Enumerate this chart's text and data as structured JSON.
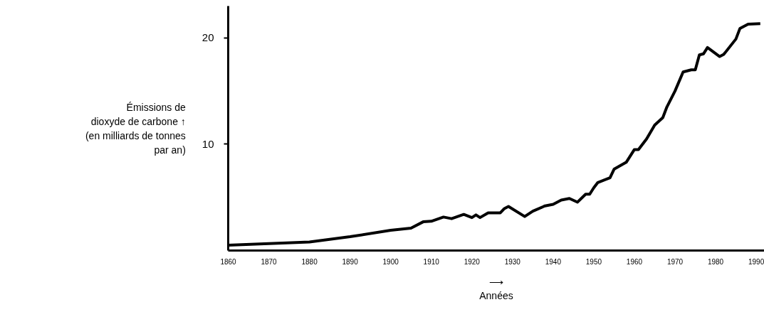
{
  "chart_data": {
    "type": "line",
    "xlabel": "⟶\nAnnées",
    "ylabel": "Émissions de\ndioxyde de carbone ↑\n(en milliards de tonnes\npar an)",
    "x": [
      1860,
      1880,
      1890,
      1900,
      1905,
      1908,
      1910,
      1913,
      1915,
      1918,
      1920,
      1921,
      1922,
      1924,
      1927,
      1928,
      1929,
      1933,
      1935,
      1938,
      1940,
      1942,
      1944,
      1946,
      1948,
      1949,
      1950,
      1951,
      1954,
      1955,
      1958,
      1960,
      1961,
      1963,
      1965,
      1967,
      1968,
      1970,
      1972,
      1974,
      1975,
      1976,
      1977,
      1978,
      1981,
      1982,
      1985,
      1986,
      1988,
      1991
    ],
    "series": [
      {
        "color": "#000000",
        "values": [
          0.5,
          0.8,
          1.3,
          1.9,
          2.1,
          2.7,
          2.75,
          3.15,
          3.0,
          3.4,
          3.1,
          3.35,
          3.1,
          3.55,
          3.55,
          3.95,
          4.15,
          3.2,
          3.7,
          4.2,
          4.35,
          4.75,
          4.9,
          4.55,
          5.3,
          5.3,
          5.9,
          6.4,
          6.85,
          7.65,
          8.3,
          9.5,
          9.5,
          10.5,
          11.8,
          12.5,
          13.5,
          15.0,
          16.8,
          17.0,
          17.0,
          18.4,
          18.5,
          19.1,
          18.25,
          18.45,
          19.9,
          20.9,
          21.3,
          21.35
        ]
      }
    ],
    "xlim": [
      1860,
      1992
    ],
    "ylim": [
      0,
      23
    ],
    "xticks": [
      1860,
      1870,
      1880,
      1890,
      1900,
      1910,
      1920,
      1930,
      1940,
      1950,
      1960,
      1970,
      1980,
      1990
    ],
    "yticks": [
      10,
      20
    ],
    "grid": false,
    "marker": "none",
    "line_style": "solid"
  }
}
